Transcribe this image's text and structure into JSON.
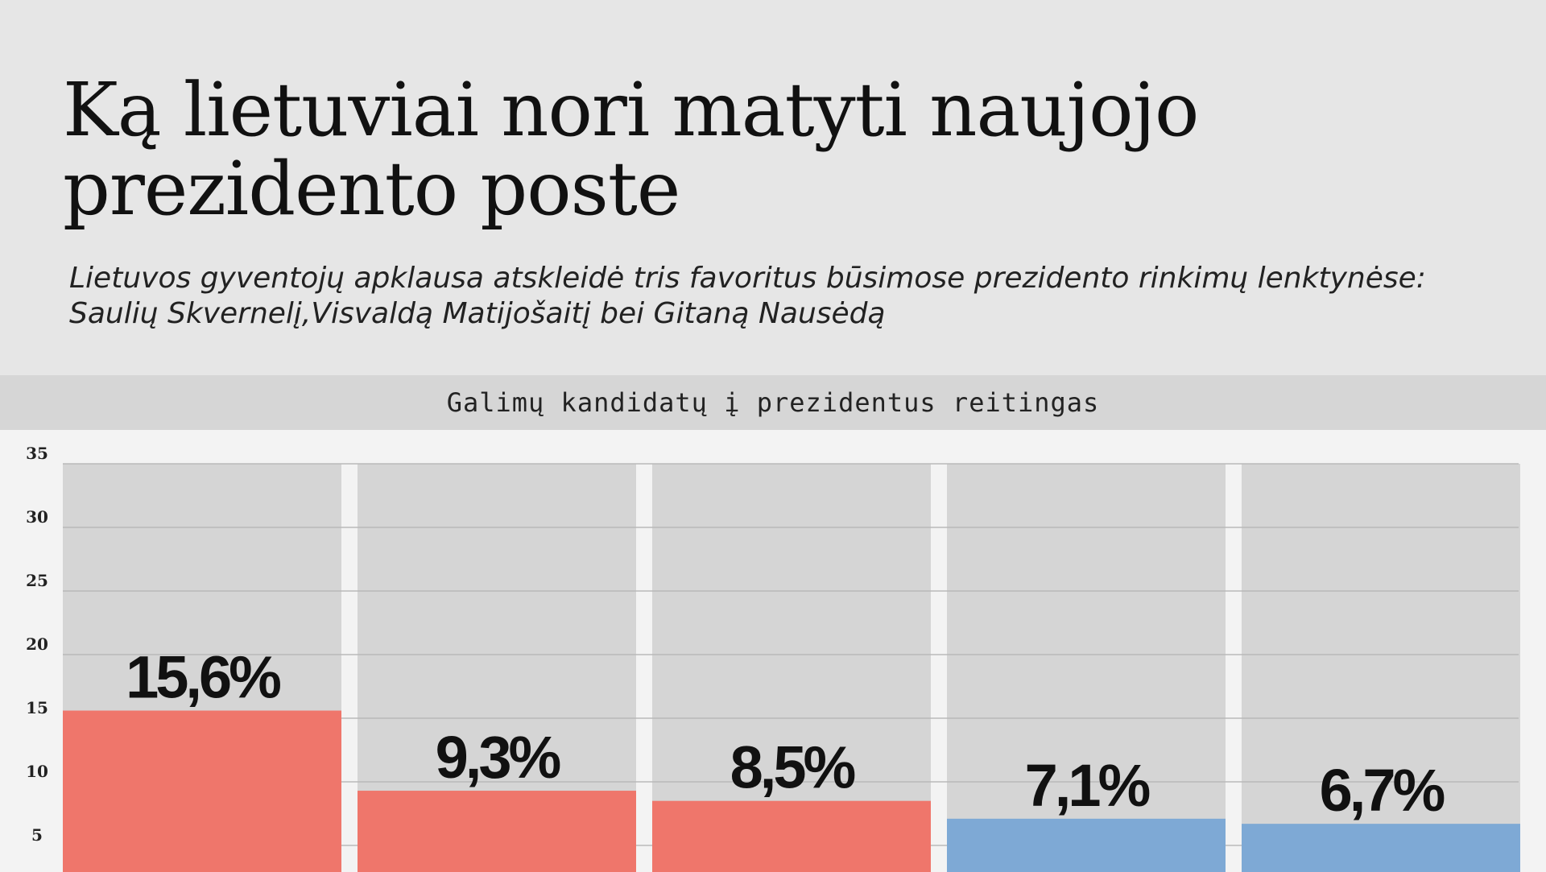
{
  "header": {
    "title": "Ką lietuviai nori matyti naujojo prezidento poste",
    "subtitle": "Lietuvos gyventojų apklausa atskleidė tris favoritus būsimose prezidento rinkimų lenktynėse: Saulių Skvernelį,Visvaldą Matijošaitį bei Gitaną Nausėdą"
  },
  "colors": {
    "background": "#e6e6e6",
    "band": "#d6d6d6",
    "plot_background": "#f3f3f3",
    "column_background": "#d5d5d5",
    "gridline": "#b9b9b9",
    "bar_red": "#ef766b",
    "bar_blue": "#7ea9d5"
  },
  "chart_data": {
    "type": "bar",
    "title": "Galimų kandidatų į prezidentus reitingas",
    "xlabel": "",
    "ylabel": "",
    "ylim": [
      0,
      35
    ],
    "yticks": [
      5,
      10,
      15,
      20,
      25,
      30,
      35
    ],
    "grid": true,
    "values": [
      15.6,
      9.3,
      8.5,
      7.1,
      6.7
    ],
    "value_labels": [
      "15,6%",
      "9,3%",
      "8,5%",
      "7,1%",
      "6,7%"
    ],
    "bar_colors": [
      "red",
      "red",
      "red",
      "blue",
      "blue"
    ]
  }
}
